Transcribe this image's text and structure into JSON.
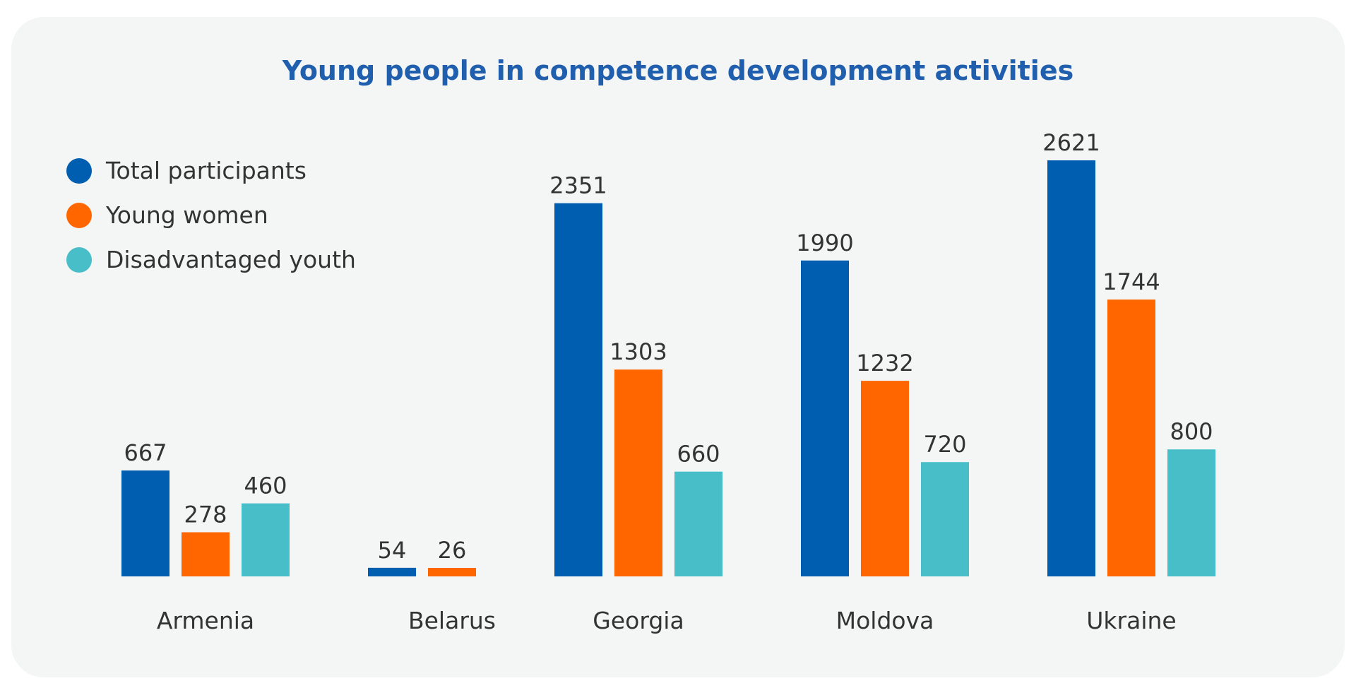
{
  "chart_data": {
    "type": "bar",
    "title": "Young people in competence development activities",
    "xlabel": "",
    "ylabel": "",
    "categories": [
      "Armenia",
      "Belarus",
      "Georgia",
      "Moldova",
      "Ukraine"
    ],
    "series": [
      {
        "name": "Total participants",
        "color": "#005eb0",
        "values": [
          667,
          54,
          2351,
          1990,
          2621
        ]
      },
      {
        "name": "Young women",
        "color": "#ff6600",
        "values": [
          278,
          26,
          1303,
          1232,
          1744
        ]
      },
      {
        "name": "Disadvantaged youth",
        "color": "#48bec8",
        "values": [
          460,
          null,
          660,
          720,
          800
        ]
      }
    ],
    "ylim": [
      0,
      2621
    ],
    "grid": false,
    "legend": "top-left"
  }
}
